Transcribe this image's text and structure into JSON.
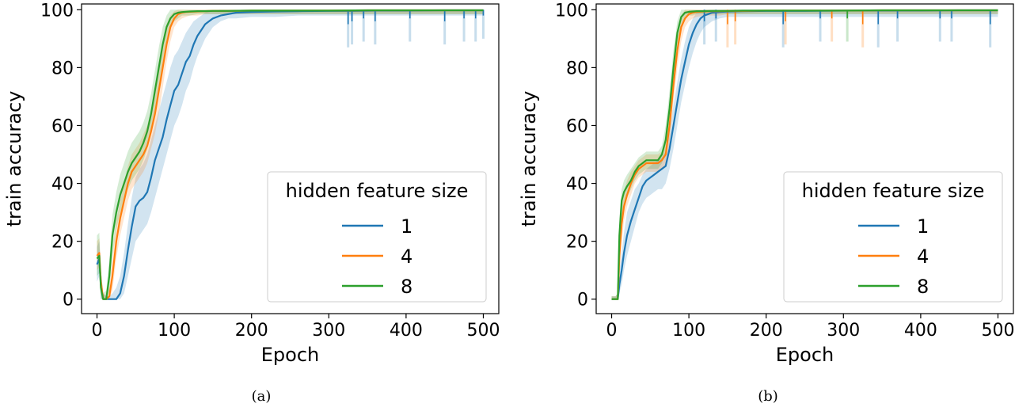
{
  "chart_data": [
    {
      "type": "line",
      "caption": "(a)",
      "xlabel": "Epoch",
      "ylabel": "train accuracy",
      "xlim": [
        -20,
        520
      ],
      "ylim": [
        -5,
        102
      ],
      "xticks": [
        0,
        100,
        200,
        300,
        400,
        500
      ],
      "yticks": [
        0,
        20,
        40,
        60,
        80,
        100
      ],
      "grid": false,
      "legend": {
        "title": "hidden feature size",
        "placement": "lower-right"
      },
      "series": [
        {
          "name": "1",
          "color": "#1f77b4",
          "x": [
            0,
            3,
            5,
            8,
            12,
            16,
            20,
            25,
            30,
            35,
            40,
            45,
            50,
            55,
            60,
            65,
            70,
            75,
            80,
            85,
            90,
            95,
            100,
            105,
            110,
            115,
            120,
            125,
            130,
            135,
            140,
            145,
            150,
            160,
            170,
            180,
            200,
            230,
            260,
            300,
            330,
            360,
            400,
            450,
            500
          ],
          "y": [
            12,
            14,
            5,
            0,
            0,
            0,
            0,
            0,
            2,
            8,
            17,
            25,
            32,
            34,
            35,
            37,
            42,
            48,
            52,
            56,
            62,
            67,
            72,
            74,
            78,
            82,
            84,
            88,
            91,
            93,
            95,
            96,
            97,
            98,
            98.5,
            99,
            99.2,
            99.4,
            99.5,
            99.6,
            99.6,
            99.7,
            99.7,
            99.8,
            99.8
          ],
          "band_low": [
            6,
            8,
            0,
            0,
            0,
            0,
            0,
            0,
            0,
            2,
            8,
            14,
            20,
            22,
            24,
            26,
            30,
            35,
            40,
            45,
            50,
            55,
            60,
            63,
            67,
            72,
            75,
            80,
            84,
            87,
            90,
            92,
            94,
            96,
            97,
            97,
            97.5,
            97.5,
            98,
            98,
            98,
            98,
            98,
            98,
            98
          ],
          "band_high": [
            18,
            20,
            10,
            2,
            1,
            1,
            2,
            4,
            8,
            16,
            26,
            35,
            42,
            45,
            47,
            50,
            55,
            60,
            65,
            70,
            75,
            80,
            84,
            86,
            89,
            92,
            94,
            96,
            97,
            98,
            99,
            99.5,
            99.8,
            100,
            100,
            100,
            100,
            100,
            100,
            100,
            100,
            100,
            100,
            100,
            100
          ]
        },
        {
          "name": "4",
          "color": "#ff7f0e",
          "x": [
            0,
            3,
            5,
            8,
            12,
            16,
            20,
            25,
            30,
            35,
            40,
            45,
            50,
            55,
            60,
            65,
            70,
            75,
            80,
            85,
            90,
            95,
            100,
            105,
            110,
            115,
            120,
            130,
            140,
            150,
            170,
            200,
            250,
            300,
            350,
            400,
            450,
            500
          ],
          "y": [
            15,
            16,
            6,
            0,
            0,
            1,
            8,
            20,
            28,
            34,
            40,
            44,
            46,
            48,
            50,
            53,
            58,
            64,
            72,
            80,
            88,
            94,
            97,
            98.5,
            99,
            99.2,
            99.3,
            99.4,
            99.5,
            99.6,
            99.6,
            99.7,
            99.7,
            99.7,
            99.8,
            99.8,
            99.8,
            99.8
          ],
          "band_low": [
            10,
            11,
            2,
            0,
            0,
            0,
            3,
            14,
            22,
            28,
            34,
            38,
            40,
            42,
            44,
            47,
            52,
            57,
            64,
            73,
            82,
            89,
            94,
            96,
            97,
            97.5,
            98,
            98,
            98.5,
            98.5,
            98.5,
            98.5,
            98.5,
            98.5,
            98.5,
            98.5,
            98.5,
            98.5
          ],
          "band_high": [
            20,
            21,
            10,
            2,
            1,
            4,
            14,
            27,
            34,
            40,
            46,
            50,
            52,
            54,
            57,
            60,
            65,
            72,
            80,
            88,
            95,
            98,
            99.5,
            100,
            100,
            100,
            100,
            100,
            100,
            100,
            100,
            100,
            100,
            100,
            100,
            100,
            100,
            100
          ]
        },
        {
          "name": "8",
          "color": "#2ca02c",
          "x": [
            0,
            3,
            5,
            8,
            12,
            16,
            20,
            25,
            30,
            35,
            40,
            45,
            50,
            55,
            60,
            65,
            70,
            75,
            80,
            85,
            90,
            95,
            100,
            105,
            110,
            120,
            130,
            140,
            150,
            170,
            200,
            250,
            300,
            350,
            400,
            450,
            500
          ],
          "y": [
            14,
            15,
            4,
            0,
            0,
            8,
            22,
            30,
            36,
            40,
            44,
            47,
            49,
            51,
            54,
            58,
            64,
            72,
            80,
            88,
            94,
            97,
            98.5,
            99,
            99.2,
            99.4,
            99.5,
            99.5,
            99.6,
            99.6,
            99.7,
            99.7,
            99.7,
            99.8,
            99.8,
            99.8,
            99.8
          ],
          "band_low": [
            8,
            9,
            0,
            0,
            0,
            3,
            15,
            24,
            30,
            34,
            38,
            41,
            43,
            45,
            48,
            52,
            58,
            65,
            73,
            82,
            89,
            94,
            96,
            97,
            98,
            98,
            98.5,
            98.5,
            98.5,
            98.5,
            98.5,
            98.5,
            98.5,
            98.5,
            98.5,
            98.5,
            98.5
          ],
          "band_high": [
            22,
            23,
            10,
            2,
            3,
            14,
            29,
            37,
            43,
            47,
            51,
            54,
            56,
            58,
            61,
            65,
            71,
            79,
            87,
            94,
            98,
            100,
            100,
            100,
            100,
            100,
            100,
            100,
            100,
            100,
            100,
            100,
            100,
            100,
            100,
            100,
            100
          ]
        }
      ],
      "dips": [
        {
          "series": "1",
          "x": 325,
          "y": 95
        },
        {
          "series": "1",
          "x": 330,
          "y": 96
        },
        {
          "series": "1",
          "x": 345,
          "y": 97
        },
        {
          "series": "1",
          "x": 360,
          "y": 96
        },
        {
          "series": "1",
          "x": 405,
          "y": 97
        },
        {
          "series": "1",
          "x": 450,
          "y": 96
        },
        {
          "series": "1",
          "x": 475,
          "y": 97
        },
        {
          "series": "1",
          "x": 490,
          "y": 97
        },
        {
          "series": "1",
          "x": 500,
          "y": 98
        }
      ]
    },
    {
      "type": "line",
      "caption": "(b)",
      "xlabel": "Epoch",
      "ylabel": "train accuracy",
      "xlim": [
        -20,
        520
      ],
      "ylim": [
        -5,
        102
      ],
      "xticks": [
        0,
        100,
        200,
        300,
        400,
        500
      ],
      "yticks": [
        0,
        20,
        40,
        60,
        80,
        100
      ],
      "grid": false,
      "legend": {
        "title": "hidden feature size",
        "placement": "lower-right"
      },
      "series": [
        {
          "name": "1",
          "color": "#1f77b4",
          "x": [
            0,
            5,
            8,
            10,
            13,
            16,
            20,
            25,
            30,
            35,
            40,
            45,
            50,
            55,
            60,
            65,
            70,
            75,
            80,
            85,
            90,
            95,
            100,
            105,
            110,
            115,
            120,
            125,
            130,
            140,
            150,
            170,
            200,
            250,
            300,
            350,
            400,
            450,
            500
          ],
          "y": [
            0,
            0,
            0,
            5,
            10,
            16,
            22,
            27,
            31,
            35,
            39,
            41,
            42,
            43,
            44,
            45,
            46,
            52,
            60,
            68,
            76,
            82,
            88,
            92,
            95,
            97,
            98,
            98.5,
            99,
            99.2,
            99.4,
            99.5,
            99.6,
            99.6,
            99.7,
            99.7,
            99.7,
            99.8,
            99.8
          ],
          "band_low": [
            0,
            0,
            0,
            2,
            5,
            10,
            15,
            20,
            25,
            30,
            33,
            35,
            36,
            37,
            38,
            38,
            40,
            45,
            52,
            60,
            68,
            74,
            80,
            85,
            89,
            92,
            94,
            95,
            96,
            97,
            97.5,
            97.5,
            97.5,
            97.5,
            97.5,
            97.5,
            97.5,
            97.5,
            97.5
          ],
          "band_high": [
            1,
            1,
            2,
            10,
            16,
            23,
            30,
            34,
            38,
            40,
            43,
            45,
            46,
            47,
            48,
            49,
            51,
            58,
            67,
            75,
            83,
            89,
            94,
            97,
            99,
            99.5,
            100,
            100,
            100,
            100,
            100,
            100,
            100,
            100,
            100,
            100,
            100,
            100,
            100
          ]
        },
        {
          "name": "4",
          "color": "#ff7f0e",
          "x": [
            0,
            5,
            8,
            10,
            13,
            16,
            20,
            25,
            30,
            35,
            40,
            45,
            50,
            55,
            60,
            65,
            70,
            75,
            80,
            85,
            90,
            95,
            100,
            105,
            110,
            120,
            130,
            140,
            150,
            170,
            200,
            250,
            300,
            350,
            400,
            450,
            500
          ],
          "y": [
            0,
            0,
            0,
            15,
            26,
            32,
            36,
            40,
            43,
            45,
            46,
            47,
            47,
            47,
            47,
            48,
            50,
            60,
            74,
            86,
            94,
            97,
            98.5,
            99,
            99.2,
            99.4,
            99.5,
            99.5,
            99.6,
            99.6,
            99.7,
            99.7,
            99.7,
            99.8,
            99.8,
            99.8,
            99.8
          ],
          "band_low": [
            0,
            0,
            0,
            8,
            20,
            27,
            32,
            36,
            40,
            42,
            43,
            44,
            44,
            44,
            44,
            45,
            46,
            54,
            68,
            80,
            89,
            94,
            96,
            97,
            97.5,
            98,
            98,
            98,
            98.5,
            98.5,
            98.5,
            98.5,
            98.5,
            98.5,
            98.5,
            98.5,
            98.5
          ],
          "band_high": [
            1,
            1,
            2,
            22,
            32,
            37,
            41,
            44,
            46,
            48,
            49,
            50,
            50,
            50,
            50,
            51,
            54,
            66,
            80,
            91,
            98,
            100,
            100,
            100,
            100,
            100,
            100,
            100,
            100,
            100,
            100,
            100,
            100,
            100,
            100,
            100,
            100
          ]
        },
        {
          "name": "8",
          "color": "#2ca02c",
          "x": [
            0,
            5,
            8,
            10,
            13,
            16,
            20,
            25,
            30,
            35,
            40,
            45,
            50,
            55,
            60,
            65,
            70,
            75,
            80,
            85,
            90,
            95,
            100,
            105,
            110,
            120,
            130,
            140,
            150,
            170,
            200,
            250,
            300,
            350,
            400,
            450,
            500
          ],
          "y": [
            0,
            0,
            0,
            22,
            34,
            37,
            39,
            41,
            44,
            46,
            47,
            48,
            48,
            48,
            48,
            50,
            55,
            66,
            80,
            92,
            97.5,
            99,
            99.3,
            99.4,
            99.5,
            99.5,
            99.6,
            99.6,
            99.6,
            99.7,
            99.7,
            99.7,
            99.7,
            99.8,
            99.8,
            99.8,
            99.8
          ],
          "band_low": [
            0,
            0,
            0,
            15,
            28,
            33,
            35,
            38,
            41,
            43,
            44,
            45,
            45,
            45,
            45,
            47,
            51,
            61,
            75,
            88,
            95,
            97.5,
            98,
            98,
            98.5,
            98.5,
            98.5,
            98.5,
            98.5,
            98.5,
            98.5,
            98.5,
            98.5,
            98.5,
            98.5,
            98.5,
            98.5
          ],
          "band_high": [
            1,
            1,
            2,
            28,
            38,
            41,
            43,
            45,
            47,
            49,
            50,
            51,
            51,
            51,
            51,
            53,
            60,
            72,
            86,
            96,
            100,
            100,
            100,
            100,
            100,
            100,
            100,
            100,
            100,
            100,
            100,
            100,
            100,
            100,
            100,
            100,
            100
          ]
        }
      ],
      "dips": [
        {
          "series": "1",
          "x": 120,
          "y": 96
        },
        {
          "series": "1",
          "x": 135,
          "y": 97
        },
        {
          "series": "4",
          "x": 150,
          "y": 95
        },
        {
          "series": "4",
          "x": 160,
          "y": 96
        },
        {
          "series": "1",
          "x": 222,
          "y": 95
        },
        {
          "series": "4",
          "x": 225,
          "y": 96
        },
        {
          "series": "1",
          "x": 270,
          "y": 97
        },
        {
          "series": "4",
          "x": 285,
          "y": 97
        },
        {
          "series": "8",
          "x": 305,
          "y": 97
        },
        {
          "series": "4",
          "x": 325,
          "y": 95
        },
        {
          "series": "1",
          "x": 345,
          "y": 95
        },
        {
          "series": "1",
          "x": 370,
          "y": 97
        },
        {
          "series": "1",
          "x": 425,
          "y": 97
        },
        {
          "series": "1",
          "x": 440,
          "y": 97
        },
        {
          "series": "1",
          "x": 490,
          "y": 95
        }
      ]
    }
  ]
}
